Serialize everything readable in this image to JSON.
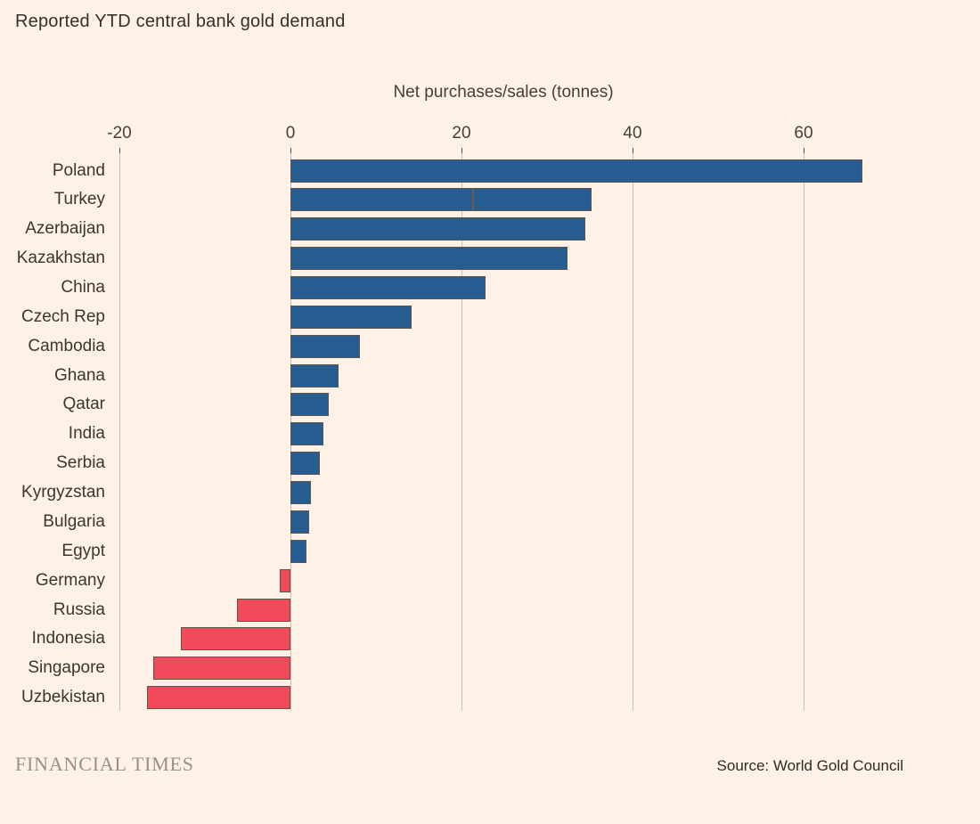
{
  "title": "Reported YTD central bank gold demand",
  "footer": {
    "brand": "FINANCIAL TIMES",
    "source": "Source: World Gold Council"
  },
  "chart_data": {
    "type": "bar",
    "orientation": "horizontal",
    "title": "Reported YTD central bank gold demand",
    "axis_title": "Net purchases/sales (tonnes)",
    "xlabel": "Net purchases/sales (tonnes)",
    "ylabel": "",
    "xlim": [
      -21,
      80
    ],
    "x_tick_values": [
      -20,
      0,
      20,
      40,
      60
    ],
    "x_tick_labels": [
      "-20",
      "0",
      "20",
      "40",
      "60"
    ],
    "grid": "vertical",
    "legend_position": "none",
    "categories": [
      "Poland",
      "Turkey",
      "Azerbaijan",
      "Kazakhstan",
      "China",
      "Czech Rep",
      "Cambodia",
      "Ghana",
      "Qatar",
      "India",
      "Serbia",
      "Kyrgyzstan",
      "Bulgaria",
      "Egypt",
      "Germany",
      "Russia",
      "Indonesia",
      "Singapore",
      "Uzbekistan"
    ],
    "values": [
      66.9,
      35.2,
      34.5,
      32.4,
      22.8,
      14.2,
      8.1,
      5.6,
      4.5,
      3.9,
      3.4,
      2.4,
      2.2,
      1.9,
      -1.3,
      -6.2,
      -12.8,
      -16.0,
      -16.8
    ],
    "segment_divider": {
      "category": "Turkey",
      "at_value": 21.3
    },
    "colors": {
      "positive_bar": "#265C8F",
      "negative_bar": "#F4495A",
      "bar_border": "#5E554B",
      "gridline": "#CDC0B3",
      "background": "#FFF1E5",
      "title_text": "#33302E",
      "axis_text": "#44403B",
      "brand_text": "#9A9087"
    }
  }
}
